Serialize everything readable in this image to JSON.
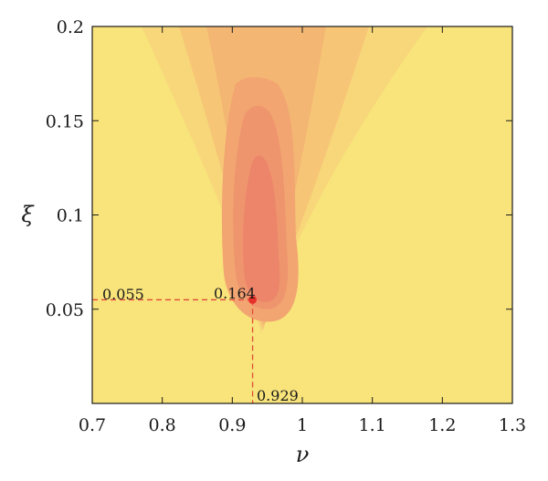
{
  "chart_data": {
    "type": "heatmap",
    "title": "",
    "xlabel": "ν",
    "ylabel": "ξ",
    "xlim": [
      0.7,
      1.3
    ],
    "ylim": [
      0.0,
      0.2
    ],
    "x_ticks": [
      0.7,
      0.8,
      0.9,
      1.0,
      1.1,
      1.2,
      1.3
    ],
    "x_tick_labels": [
      "0.7",
      "0.8",
      "0.9",
      "1",
      "1.1",
      "1.2",
      "1.3"
    ],
    "y_ticks": [
      0.05,
      0.1,
      0.15,
      0.2
    ],
    "y_tick_labels": [
      "0.05",
      "0.1",
      "0.15",
      "0.2"
    ],
    "grid": false,
    "colors": {
      "levels": [
        "#f8e47a",
        "#f8d77a",
        "#f6c676",
        "#f4b673",
        "#f2a571",
        "#ef956e",
        "#ec8569"
      ],
      "marker": "#e8302a",
      "guide": "#e04a3c",
      "axis": "#1a1a1a"
    },
    "optimum": {
      "x": 0.929,
      "y": 0.055,
      "value": 0.164,
      "x_label": "0.929",
      "y_label": "0.055",
      "value_label": "0.164"
    }
  }
}
